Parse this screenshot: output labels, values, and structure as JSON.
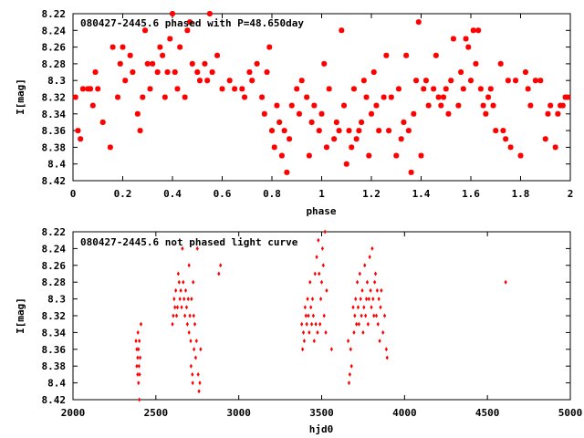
{
  "chart_data": [
    {
      "type": "scatter",
      "title": "080427-2445.6 phased with P=48.650day",
      "xlabel": "phase",
      "ylabel": "I[mag]",
      "xlim": [
        0,
        2
      ],
      "ylim": [
        8.42,
        8.22
      ],
      "y_inverted": true,
      "grid": false,
      "marker_color": "#ff0000",
      "x_ticks": [
        "0",
        "0.2",
        "0.4",
        "0.6",
        "0.8",
        "1",
        "1.2",
        "1.4",
        "1.6",
        "1.8",
        "2"
      ],
      "y_ticks": [
        "8.22",
        "8.24",
        "8.26",
        "8.28",
        "8.3",
        "8.32",
        "8.34",
        "8.36",
        "8.38",
        "8.4",
        "8.42"
      ],
      "points": [
        [
          0.01,
          8.32
        ],
        [
          0.02,
          8.36
        ],
        [
          0.03,
          8.37
        ],
        [
          0.04,
          8.31
        ],
        [
          0.06,
          8.31
        ],
        [
          0.07,
          8.31
        ],
        [
          0.08,
          8.33
        ],
        [
          0.09,
          8.29
        ],
        [
          0.1,
          8.31
        ],
        [
          0.12,
          8.35
        ],
        [
          0.15,
          8.38
        ],
        [
          0.16,
          8.26
        ],
        [
          0.18,
          8.32
        ],
        [
          0.19,
          8.28
        ],
        [
          0.2,
          8.26
        ],
        [
          0.21,
          8.3
        ],
        [
          0.23,
          8.27
        ],
        [
          0.24,
          8.29
        ],
        [
          0.26,
          8.34
        ],
        [
          0.27,
          8.36
        ],
        [
          0.28,
          8.32
        ],
        [
          0.29,
          8.24
        ],
        [
          0.3,
          8.28
        ],
        [
          0.31,
          8.31
        ],
        [
          0.32,
          8.28
        ],
        [
          0.34,
          8.29
        ],
        [
          0.35,
          8.26
        ],
        [
          0.36,
          8.27
        ],
        [
          0.37,
          8.32
        ],
        [
          0.38,
          8.29
        ],
        [
          0.39,
          8.25
        ],
        [
          0.4,
          8.22
        ],
        [
          0.41,
          8.29
        ],
        [
          0.42,
          8.31
        ],
        [
          0.43,
          8.26
        ],
        [
          0.45,
          8.32
        ],
        [
          0.46,
          8.24
        ],
        [
          0.47,
          8.23
        ],
        [
          0.48,
          8.28
        ],
        [
          0.5,
          8.29
        ],
        [
          0.51,
          8.3
        ],
        [
          0.53,
          8.28
        ],
        [
          0.54,
          8.3
        ],
        [
          0.55,
          8.22
        ],
        [
          0.56,
          8.29
        ],
        [
          0.58,
          8.27
        ],
        [
          0.6,
          8.31
        ],
        [
          0.63,
          8.3
        ],
        [
          0.65,
          8.31
        ],
        [
          0.68,
          8.31
        ],
        [
          0.69,
          8.32
        ],
        [
          0.71,
          8.29
        ],
        [
          0.72,
          8.3
        ],
        [
          0.74,
          8.28
        ],
        [
          0.76,
          8.32
        ],
        [
          0.77,
          8.34
        ],
        [
          0.78,
          8.29
        ],
        [
          0.79,
          8.26
        ],
        [
          0.8,
          8.36
        ],
        [
          0.81,
          8.38
        ],
        [
          0.82,
          8.33
        ],
        [
          0.83,
          8.35
        ],
        [
          0.84,
          8.39
        ],
        [
          0.85,
          8.36
        ],
        [
          0.86,
          8.41
        ],
        [
          0.87,
          8.37
        ],
        [
          0.88,
          8.33
        ],
        [
          0.9,
          8.31
        ],
        [
          0.91,
          8.34
        ],
        [
          0.92,
          8.3
        ],
        [
          0.94,
          8.32
        ],
        [
          0.95,
          8.39
        ],
        [
          0.96,
          8.35
        ],
        [
          0.97,
          8.33
        ],
        [
          0.99,
          8.36
        ],
        [
          1.0,
          8.34
        ],
        [
          1.01,
          8.28
        ],
        [
          1.02,
          8.38
        ],
        [
          1.03,
          8.31
        ],
        [
          1.05,
          8.37
        ],
        [
          1.06,
          8.35
        ],
        [
          1.07,
          8.36
        ],
        [
          1.08,
          8.24
        ],
        [
          1.09,
          8.33
        ],
        [
          1.1,
          8.4
        ],
        [
          1.11,
          8.36
        ],
        [
          1.12,
          8.38
        ],
        [
          1.13,
          8.31
        ],
        [
          1.14,
          8.37
        ],
        [
          1.15,
          8.36
        ],
        [
          1.16,
          8.35
        ],
        [
          1.17,
          8.3
        ],
        [
          1.18,
          8.32
        ],
        [
          1.19,
          8.39
        ],
        [
          1.2,
          8.34
        ],
        [
          1.21,
          8.29
        ],
        [
          1.22,
          8.33
        ],
        [
          1.23,
          8.36
        ],
        [
          1.25,
          8.32
        ],
        [
          1.26,
          8.27
        ],
        [
          1.27,
          8.36
        ],
        [
          1.28,
          8.32
        ],
        [
          1.3,
          8.39
        ],
        [
          1.31,
          8.31
        ],
        [
          1.32,
          8.37
        ],
        [
          1.33,
          8.35
        ],
        [
          1.34,
          8.27
        ],
        [
          1.35,
          8.36
        ],
        [
          1.36,
          8.41
        ],
        [
          1.37,
          8.34
        ],
        [
          1.38,
          8.3
        ],
        [
          1.39,
          8.23
        ],
        [
          1.4,
          8.39
        ],
        [
          1.41,
          8.31
        ],
        [
          1.42,
          8.3
        ],
        [
          1.43,
          8.33
        ],
        [
          1.45,
          8.31
        ],
        [
          1.46,
          8.27
        ],
        [
          1.47,
          8.32
        ],
        [
          1.48,
          8.33
        ],
        [
          1.49,
          8.32
        ],
        [
          1.5,
          8.31
        ],
        [
          1.51,
          8.34
        ],
        [
          1.52,
          8.3
        ],
        [
          1.53,
          8.25
        ],
        [
          1.55,
          8.33
        ],
        [
          1.56,
          8.29
        ],
        [
          1.57,
          8.31
        ],
        [
          1.58,
          8.25
        ],
        [
          1.59,
          8.26
        ],
        [
          1.6,
          8.3
        ],
        [
          1.61,
          8.24
        ],
        [
          1.62,
          8.28
        ],
        [
          1.63,
          8.24
        ],
        [
          1.64,
          8.31
        ],
        [
          1.65,
          8.33
        ],
        [
          1.66,
          8.34
        ],
        [
          1.67,
          8.32
        ],
        [
          1.68,
          8.31
        ],
        [
          1.69,
          8.33
        ],
        [
          1.7,
          8.36
        ],
        [
          1.72,
          8.28
        ],
        [
          1.73,
          8.36
        ],
        [
          1.74,
          8.37
        ],
        [
          1.75,
          8.3
        ],
        [
          1.76,
          8.38
        ],
        [
          1.78,
          8.3
        ],
        [
          1.8,
          8.39
        ],
        [
          1.82,
          8.29
        ],
        [
          1.83,
          8.31
        ],
        [
          1.84,
          8.33
        ],
        [
          1.86,
          8.3
        ],
        [
          1.88,
          8.3
        ],
        [
          1.9,
          8.37
        ],
        [
          1.91,
          8.34
        ],
        [
          1.92,
          8.33
        ],
        [
          1.94,
          8.38
        ],
        [
          1.95,
          8.34
        ],
        [
          1.96,
          8.33
        ],
        [
          1.97,
          8.33
        ],
        [
          1.98,
          8.32
        ],
        [
          1.99,
          8.32
        ]
      ]
    },
    {
      "type": "scatter",
      "title": "080427-2445.6 not phased light curve",
      "xlabel": "hjd0",
      "ylabel": "I[mag]",
      "xlim": [
        2000,
        5000
      ],
      "ylim": [
        8.42,
        8.22
      ],
      "y_inverted": true,
      "grid": false,
      "marker_color": "#ff0000",
      "x_ticks": [
        "2000",
        "2500",
        "3000",
        "3500",
        "4000",
        "4500",
        "5000"
      ],
      "y_ticks": [
        "8.22",
        "8.24",
        "8.26",
        "8.28",
        "8.3",
        "8.32",
        "8.34",
        "8.36",
        "8.38",
        "8.4",
        "8.42"
      ],
      "points": [
        [
          2380,
          8.35
        ],
        [
          2385,
          8.36
        ],
        [
          2385,
          8.38
        ],
        [
          2390,
          8.37
        ],
        [
          2390,
          8.39
        ],
        [
          2392,
          8.34
        ],
        [
          2395,
          8.36
        ],
        [
          2395,
          8.4
        ],
        [
          2398,
          8.38
        ],
        [
          2400,
          8.35
        ],
        [
          2400,
          8.42
        ],
        [
          2402,
          8.39
        ],
        [
          2405,
          8.37
        ],
        [
          2410,
          8.33
        ],
        [
          2600,
          8.33
        ],
        [
          2605,
          8.32
        ],
        [
          2610,
          8.3
        ],
        [
          2615,
          8.31
        ],
        [
          2620,
          8.29
        ],
        [
          2625,
          8.32
        ],
        [
          2630,
          8.31
        ],
        [
          2635,
          8.27
        ],
        [
          2640,
          8.28
        ],
        [
          2645,
          8.3
        ],
        [
          2650,
          8.29
        ],
        [
          2655,
          8.31
        ],
        [
          2660,
          8.24
        ],
        [
          2665,
          8.28
        ],
        [
          2670,
          8.3
        ],
        [
          2675,
          8.32
        ],
        [
          2680,
          8.29
        ],
        [
          2685,
          8.31
        ],
        [
          2690,
          8.33
        ],
        [
          2695,
          8.3
        ],
        [
          2700,
          8.26
        ],
        [
          2700,
          8.34
        ],
        [
          2705,
          8.32
        ],
        [
          2710,
          8.35
        ],
        [
          2712,
          8.38
        ],
        [
          2715,
          8.3
        ],
        [
          2720,
          8.39
        ],
        [
          2722,
          8.4
        ],
        [
          2725,
          8.28
        ],
        [
          2728,
          8.32
        ],
        [
          2730,
          8.36
        ],
        [
          2735,
          8.33
        ],
        [
          2740,
          8.37
        ],
        [
          2745,
          8.35
        ],
        [
          2750,
          8.24
        ],
        [
          2755,
          8.39
        ],
        [
          2760,
          8.41
        ],
        [
          2765,
          8.4
        ],
        [
          2770,
          8.36
        ],
        [
          2880,
          8.27
        ],
        [
          2890,
          8.26
        ],
        [
          3380,
          8.33
        ],
        [
          3385,
          8.36
        ],
        [
          3390,
          8.34
        ],
        [
          3395,
          8.35
        ],
        [
          3400,
          8.31
        ],
        [
          3405,
          8.32
        ],
        [
          3410,
          8.33
        ],
        [
          3415,
          8.3
        ],
        [
          3420,
          8.32
        ],
        [
          3425,
          8.34
        ],
        [
          3430,
          8.28
        ],
        [
          3435,
          8.31
        ],
        [
          3440,
          8.33
        ],
        [
          3445,
          8.3
        ],
        [
          3450,
          8.32
        ],
        [
          3455,
          8.35
        ],
        [
          3460,
          8.27
        ],
        [
          3465,
          8.33
        ],
        [
          3470,
          8.25
        ],
        [
          3475,
          8.34
        ],
        [
          3480,
          8.23
        ],
        [
          3485,
          8.27
        ],
        [
          3490,
          8.33
        ],
        [
          3495,
          8.3
        ],
        [
          3500,
          8.28
        ],
        [
          3505,
          8.24
        ],
        [
          3510,
          8.26
        ],
        [
          3515,
          8.32
        ],
        [
          3520,
          8.22
        ],
        [
          3525,
          8.34
        ],
        [
          3530,
          8.29
        ],
        [
          3560,
          8.36
        ],
        [
          3660,
          8.35
        ],
        [
          3665,
          8.4
        ],
        [
          3670,
          8.39
        ],
        [
          3675,
          8.36
        ],
        [
          3680,
          8.38
        ],
        [
          3690,
          8.31
        ],
        [
          3695,
          8.34
        ],
        [
          3700,
          8.32
        ],
        [
          3705,
          8.3
        ],
        [
          3710,
          8.33
        ],
        [
          3715,
          8.28
        ],
        [
          3720,
          8.31
        ],
        [
          3725,
          8.33
        ],
        [
          3730,
          8.27
        ],
        [
          3735,
          8.3
        ],
        [
          3740,
          8.32
        ],
        [
          3745,
          8.29
        ],
        [
          3750,
          8.34
        ],
        [
          3755,
          8.31
        ],
        [
          3760,
          8.26
        ],
        [
          3765,
          8.32
        ],
        [
          3770,
          8.3
        ],
        [
          3775,
          8.28
        ],
        [
          3780,
          8.33
        ],
        [
          3785,
          8.3
        ],
        [
          3790,
          8.25
        ],
        [
          3795,
          8.29
        ],
        [
          3800,
          8.31
        ],
        [
          3805,
          8.24
        ],
        [
          3810,
          8.3
        ],
        [
          3815,
          8.32
        ],
        [
          3820,
          8.28
        ],
        [
          3825,
          8.27
        ],
        [
          3830,
          8.32
        ],
        [
          3835,
          8.29
        ],
        [
          3840,
          8.33
        ],
        [
          3845,
          8.3
        ],
        [
          3850,
          8.35
        ],
        [
          3855,
          8.31
        ],
        [
          3860,
          8.29
        ],
        [
          3870,
          8.34
        ],
        [
          3880,
          8.32
        ],
        [
          3890,
          8.36
        ],
        [
          3895,
          8.37
        ],
        [
          4610,
          8.28
        ]
      ]
    }
  ]
}
